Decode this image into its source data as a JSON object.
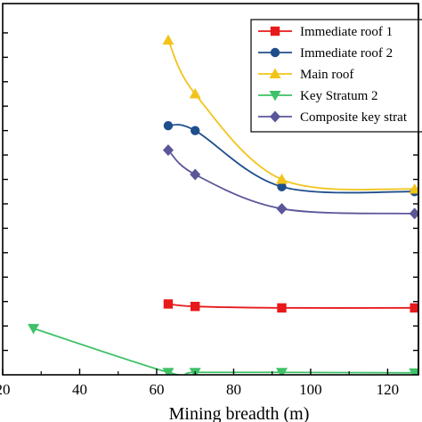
{
  "chart_data": {
    "type": "line",
    "xlabel": "Mining breadth (m)",
    "ylabel": "",
    "xlim": [
      20,
      128
    ],
    "ylim": [
      0,
      7.6
    ],
    "x_ticks": [
      20,
      40,
      60,
      80,
      100,
      120
    ],
    "x_tick_labels": [
      "20",
      "40",
      "60",
      "80",
      "100",
      "120"
    ],
    "y_ticks": [
      0.5,
      1.0,
      1.5,
      2.0,
      2.5,
      3.0,
      3.5,
      4.0,
      4.5,
      5.0,
      5.5,
      6.0,
      6.5,
      7.0
    ],
    "legend_position": "top-right",
    "grid": false,
    "series": [
      {
        "name": "Immediate roof 1",
        "color": "#e8191b",
        "marker": "square",
        "x": [
          63,
          70,
          92.5,
          127
        ],
        "y": [
          1.45,
          1.4,
          1.37,
          1.37
        ]
      },
      {
        "name": "Immediate roof 2",
        "color": "#1f4e8c",
        "marker": "circle",
        "x": [
          63,
          70,
          92.5,
          127
        ],
        "y": [
          5.1,
          5.0,
          3.85,
          3.75
        ]
      },
      {
        "name": "Main roof",
        "color": "#f2c41a",
        "marker": "triangle-up",
        "x": [
          63,
          70,
          92.5,
          127
        ],
        "y": [
          6.85,
          5.75,
          4.0,
          3.8
        ]
      },
      {
        "name": "Key Stratum 2",
        "color": "#3ec167",
        "marker": "triangle-down",
        "x": [
          28,
          63,
          70,
          92.5,
          127
        ],
        "y": [
          0.95,
          0.05,
          0.05,
          0.05,
          0.04
        ]
      },
      {
        "name": "Composite key strat",
        "color": "#5b5699",
        "marker": "diamond",
        "x": [
          63,
          70,
          92.5,
          127
        ],
        "y": [
          4.6,
          4.1,
          3.4,
          3.3
        ]
      }
    ]
  }
}
